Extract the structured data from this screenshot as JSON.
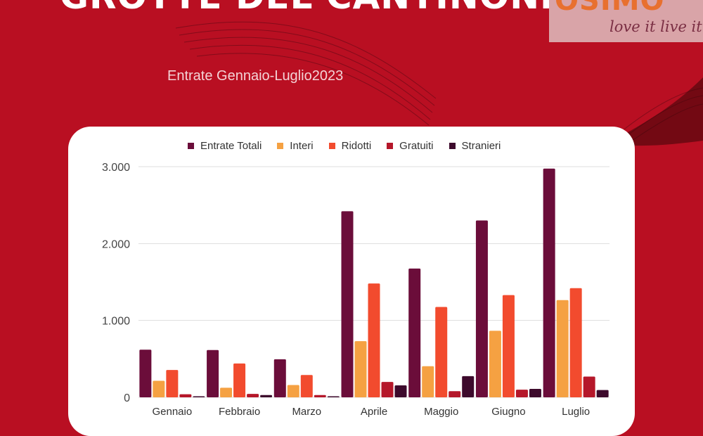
{
  "header": {
    "title": "GROTTE DEL CANTINONE",
    "subtitle": "Entrate Gennaio-Luglio2023"
  },
  "logo": {
    "brand": "OSIMO",
    "tagline": "love it live it"
  },
  "colors": {
    "background": "#b90f22",
    "card": "#ffffff"
  },
  "chart_data": {
    "type": "bar",
    "categories": [
      "Gennaio",
      "Febbraio",
      "Marzo",
      "Aprile",
      "Maggio",
      "Giugno",
      "Luglio"
    ],
    "series": [
      {
        "name": "Entrate Totali",
        "color": "#6b0d3a",
        "values": [
          620,
          615,
          495,
          2420,
          1675,
          2300,
          2975
        ]
      },
      {
        "name": "Interi",
        "color": "#f5a142",
        "values": [
          215,
          125,
          160,
          730,
          405,
          865,
          1265
        ]
      },
      {
        "name": "Ridotti",
        "color": "#f24b2e",
        "values": [
          355,
          440,
          290,
          1480,
          1175,
          1330,
          1420
        ]
      },
      {
        "name": "Gratuiti",
        "color": "#b5172a",
        "values": [
          40,
          45,
          30,
          200,
          80,
          100,
          270
        ]
      },
      {
        "name": "Stranieri",
        "color": "#3d0a2c",
        "values": [
          8,
          30,
          5,
          155,
          275,
          110,
          95
        ]
      }
    ],
    "yticks": [
      "0",
      "1.000",
      "2.000",
      "3.000"
    ],
    "ylim": [
      0,
      3000
    ],
    "grid": true,
    "legend_position": "top"
  }
}
